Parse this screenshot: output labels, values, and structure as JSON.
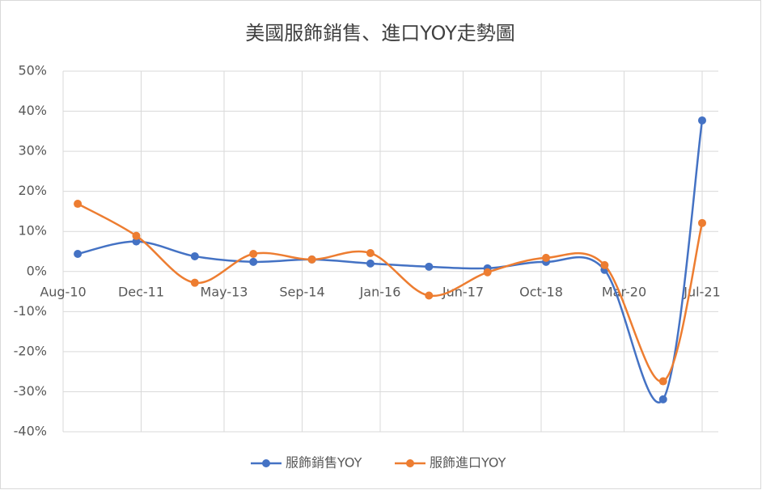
{
  "chart_data": {
    "type": "line",
    "title": "美國服飾銷售、進口YOY走勢圖",
    "x": [
      "2010-11",
      "2011-11",
      "2012-11",
      "2013-11",
      "2014-11",
      "2015-11",
      "2016-11",
      "2017-11",
      "2018-11",
      "2019-11",
      "2020-11",
      "2021-07"
    ],
    "xlim": [
      "2010-08",
      "2021-07"
    ],
    "xticks": [
      {
        "value": "2010-08",
        "label": "Aug-10"
      },
      {
        "value": "2011-12",
        "label": "Dec-11"
      },
      {
        "value": "2013-05",
        "label": "May-13"
      },
      {
        "value": "2014-09",
        "label": "Sep-14"
      },
      {
        "value": "2016-01",
        "label": "Jan-16"
      },
      {
        "value": "2017-06",
        "label": "Jun-17"
      },
      {
        "value": "2018-10",
        "label": "Oct-18"
      },
      {
        "value": "2020-03",
        "label": "Mar-20"
      },
      {
        "value": "2021-07",
        "label": "Jul-21"
      }
    ],
    "ylim": [
      -40,
      50
    ],
    "yticks": [
      {
        "value": -40,
        "label": "-40%"
      },
      {
        "value": -30,
        "label": "-30%"
      },
      {
        "value": -20,
        "label": "-20%"
      },
      {
        "value": -10,
        "label": "-10%"
      },
      {
        "value": 0,
        "label": "0%"
      },
      {
        "value": 10,
        "label": "10%"
      },
      {
        "value": 20,
        "label": "20%"
      },
      {
        "value": 30,
        "label": "30%"
      },
      {
        "value": 40,
        "label": "40%"
      },
      {
        "value": 50,
        "label": "50%"
      }
    ],
    "grid": true,
    "smooth": true,
    "legend": "bottom",
    "series": [
      {
        "name": "服飾銷售YOY",
        "color": "#4472c4",
        "values": [
          4.4,
          7.5,
          3.8,
          2.4,
          3.0,
          2.0,
          1.2,
          0.8,
          2.4,
          0.4,
          -31.9,
          37.7
        ]
      },
      {
        "name": "服飾進口YOY",
        "color": "#ed7d31",
        "values": [
          16.9,
          8.9,
          -2.8,
          4.4,
          3.0,
          4.6,
          -6.0,
          -0.2,
          3.4,
          1.6,
          -27.4,
          12.1
        ]
      }
    ]
  }
}
